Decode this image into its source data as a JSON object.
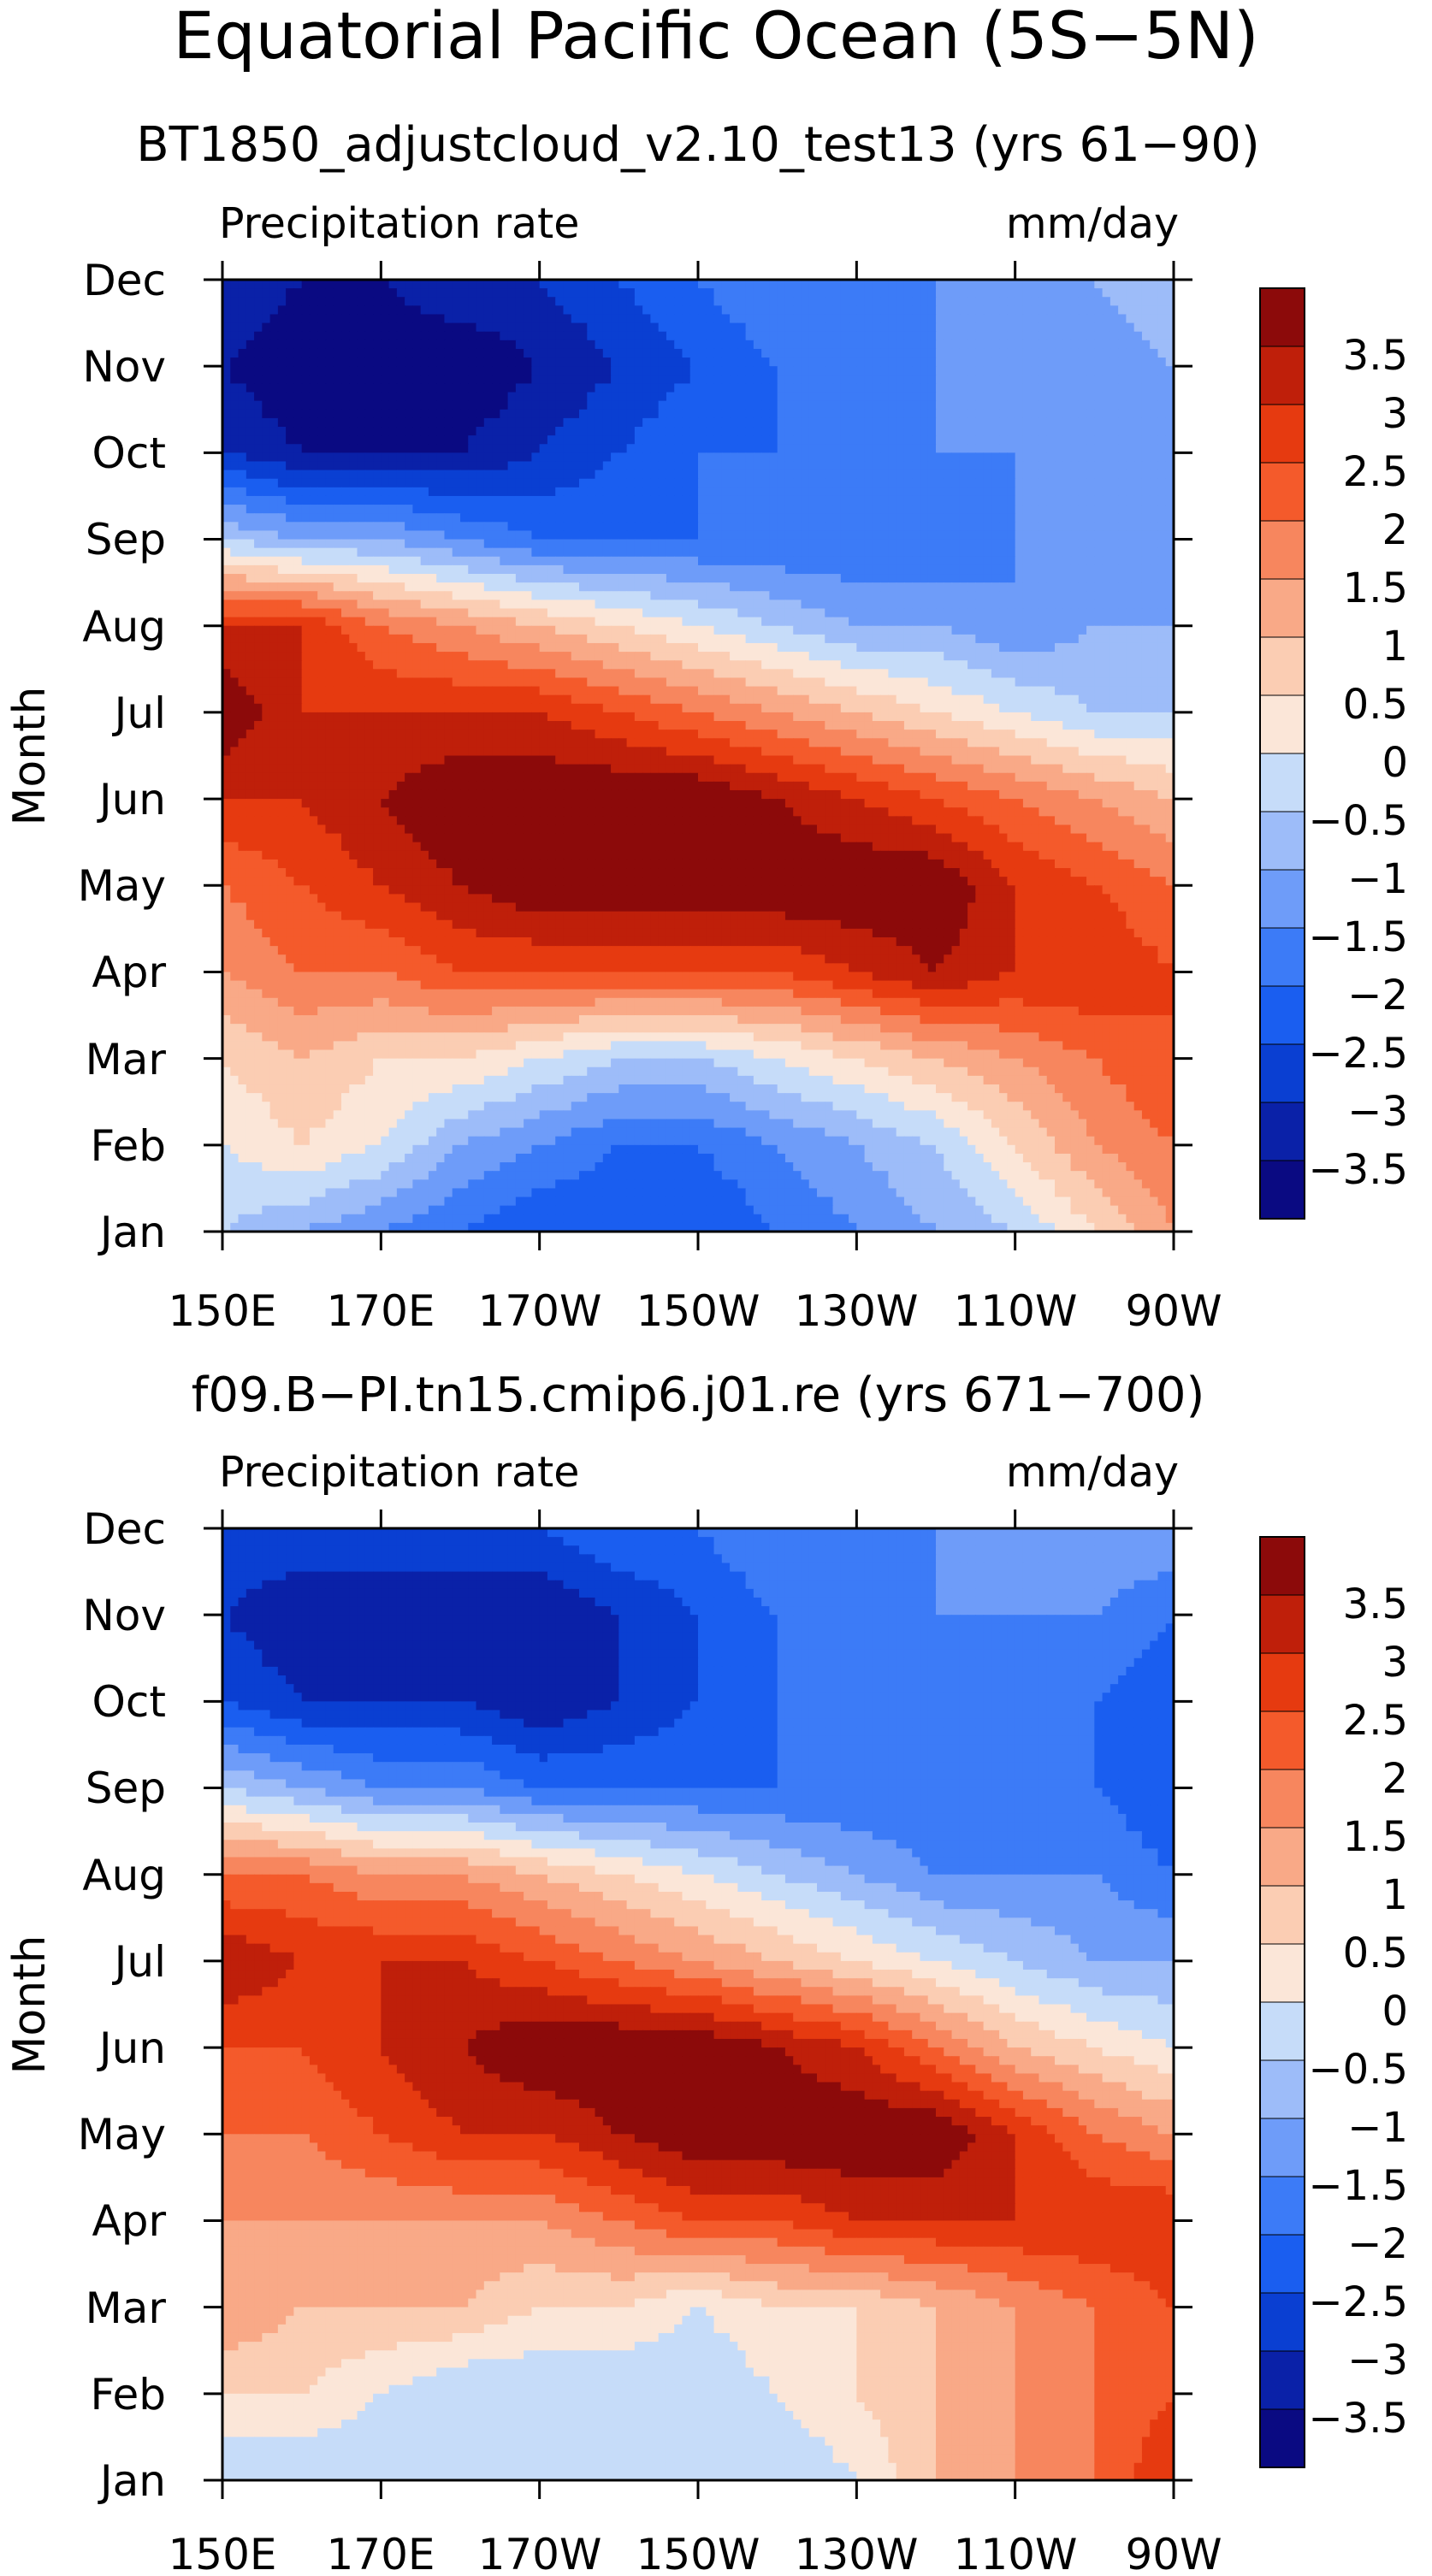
{
  "figure_title": "Equatorial Pacific Ocean (5S−5N)",
  "chart_data": [
    {
      "type": "heatmap",
      "title": "BT1850_adjustcloud_v2.10_test13 (yrs 61−90)",
      "variable_label": "Precipitation rate",
      "units_label": "mm/day",
      "ylabel": "Month",
      "x_ticks": [
        "150E",
        "170E",
        "170W",
        "150W",
        "130W",
        "110W",
        "90W"
      ],
      "x_tick_values": [
        150,
        170,
        190,
        210,
        230,
        250,
        270
      ],
      "xlim": [
        150,
        270
      ],
      "y_ticks": [
        "Jan",
        "Feb",
        "Mar",
        "Apr",
        "May",
        "Jun",
        "Jul",
        "Aug",
        "Sep",
        "Oct",
        "Nov",
        "Dec"
      ],
      "ylim": [
        1,
        12
      ],
      "colorbar": {
        "levels": [
          -3.5,
          -3,
          -2.5,
          -2,
          -1.5,
          -1,
          -0.5,
          0,
          0.5,
          1,
          1.5,
          2,
          2.5,
          3,
          3.5
        ],
        "labels": [
          "−3.5",
          "−3",
          "−2.5",
          "−2",
          "−1.5",
          "−1",
          "−0.5",
          "0",
          "0.5",
          "1",
          "1.5",
          "2",
          "2.5",
          "3",
          "3.5"
        ],
        "colors": [
          "#0a0a82",
          "#0a21a8",
          "#0a3fd2",
          "#1a5ef0",
          "#3c7bf7",
          "#6e9cf9",
          "#9dbcf9",
          "#c6dcf9",
          "#fbe6d8",
          "#fbcdb3",
          "#f9a987",
          "#f7865e",
          "#f45a2b",
          "#e63a10",
          "#bf1f0a",
          "#8c0a0a"
        ]
      },
      "grid_field_mm_per_day": [
        [
          -0.5,
          -1,
          -1.5,
          -2,
          -2.5,
          -2.5,
          -2.5,
          -2,
          -1.5,
          -1,
          -0.5,
          0.5,
          1.5
        ],
        [
          0,
          0.5,
          0,
          -1,
          -1.5,
          -2,
          -2,
          -1.5,
          -1,
          -0.5,
          0.5,
          1.5,
          2
        ],
        [
          0.5,
          1,
          0.5,
          0.5,
          0,
          -0.5,
          -0.5,
          0,
          0.5,
          1,
          1.5,
          2,
          2.5
        ],
        [
          1.5,
          2,
          2,
          2.5,
          2.5,
          2.5,
          2.5,
          2.5,
          3,
          3.5,
          3,
          3,
          2.5
        ],
        [
          2,
          2.5,
          3,
          3.5,
          4,
          4,
          4,
          4,
          4,
          4,
          3,
          2.5,
          2
        ],
        [
          3,
          3,
          3.5,
          4,
          4,
          4,
          4,
          3.5,
          3,
          2.5,
          2,
          1.5,
          1
        ],
        [
          4,
          3,
          3,
          3,
          3,
          2.5,
          2,
          1.5,
          1,
          0.5,
          0,
          -0.5,
          -0.5
        ],
        [
          3,
          3,
          2,
          1.5,
          1,
          0.5,
          0,
          -0.5,
          -1,
          -1,
          -1.5,
          -1,
          -1
        ],
        [
          -0.5,
          -1,
          -1,
          -1.5,
          -2,
          -2,
          -2,
          -2,
          -2,
          -2,
          -1.5,
          -1.5,
          -1.5
        ],
        [
          -3,
          -3.5,
          -3.5,
          -3.5,
          -3,
          -2.5,
          -2,
          -2,
          -1.5,
          -1.5,
          -1.5,
          -1.5,
          -1.5
        ],
        [
          -3.5,
          -4,
          -4,
          -4,
          -3.5,
          -3,
          -2.5,
          -2,
          -2,
          -1.5,
          -1.5,
          -1.5,
          -1
        ],
        [
          -3,
          -3.5,
          -3.5,
          -3,
          -3,
          -2.5,
          -2,
          -1.5,
          -1.5,
          -1.5,
          -1,
          -1,
          -0.5
        ]
      ]
    },
    {
      "type": "heatmap",
      "title": "f09.B−PI.tn15.cmip6.j01.re (yrs 671−700)",
      "variable_label": "Precipitation rate",
      "units_label": "mm/day",
      "ylabel": "Month",
      "x_ticks": [
        "150E",
        "170E",
        "170W",
        "150W",
        "130W",
        "110W",
        "90W"
      ],
      "x_tick_values": [
        150,
        170,
        190,
        210,
        230,
        250,
        270
      ],
      "xlim": [
        150,
        270
      ],
      "y_ticks": [
        "Jan",
        "Feb",
        "Mar",
        "Apr",
        "May",
        "Jun",
        "Jul",
        "Aug",
        "Sep",
        "Oct",
        "Nov",
        "Dec"
      ],
      "ylim": [
        1,
        12
      ],
      "colorbar": {
        "levels": [
          -3.5,
          -3,
          -2.5,
          -2,
          -1.5,
          -1,
          -0.5,
          0,
          0.5,
          1,
          1.5,
          2,
          2.5,
          3,
          3.5
        ],
        "labels": [
          "−3.5",
          "−3",
          "−2.5",
          "−2",
          "−1.5",
          "−1",
          "−0.5",
          "0",
          "0.5",
          "1",
          "1.5",
          "2",
          "2.5",
          "3",
          "3.5"
        ],
        "colors": [
          "#0a0a82",
          "#0a21a8",
          "#0a3fd2",
          "#1a5ef0",
          "#3c7bf7",
          "#6e9cf9",
          "#9dbcf9",
          "#c6dcf9",
          "#fbe6d8",
          "#fbcdb3",
          "#f9a987",
          "#f7865e",
          "#f45a2b",
          "#e63a10",
          "#bf1f0a",
          "#8c0a0a"
        ]
      },
      "grid_field_mm_per_day": [
        [
          -0.5,
          -0.5,
          -0.5,
          -0.5,
          -0.5,
          -0.5,
          -0.5,
          -0.5,
          0,
          1,
          1.5,
          2,
          3
        ],
        [
          0.5,
          0.5,
          0,
          -0.5,
          -0.5,
          -0.5,
          -0.5,
          0,
          0.5,
          1,
          1.5,
          2,
          2.5
        ],
        [
          1.5,
          1,
          1,
          1,
          0.5,
          0.5,
          0,
          0.5,
          0.5,
          1,
          1.5,
          2,
          2.5
        ],
        [
          1.5,
          1.5,
          1.5,
          1.5,
          1.5,
          2,
          2.5,
          2.5,
          3,
          3,
          3,
          3,
          3
        ],
        [
          2,
          2,
          2.5,
          3,
          3,
          3.5,
          4,
          4,
          4,
          4,
          3,
          2,
          1.5
        ],
        [
          2.5,
          2.5,
          3,
          3.5,
          4,
          4,
          4,
          3.5,
          3,
          2,
          1,
          0.5,
          0
        ],
        [
          3.5,
          3,
          3,
          3,
          2.5,
          2,
          1.5,
          1,
          0.5,
          0,
          -0.5,
          -1,
          -1
        ],
        [
          2,
          2,
          1.5,
          1.5,
          1,
          0.5,
          0,
          -0.5,
          -1,
          -1.5,
          -1.5,
          -1.5,
          -2
        ],
        [
          -0.5,
          -1,
          -1.5,
          -1.5,
          -2,
          -2,
          -2,
          -2,
          -2,
          -2,
          -2,
          -2,
          -2.5
        ],
        [
          -2.5,
          -3,
          -3,
          -3,
          -3.5,
          -3,
          -2.5,
          -2,
          -2,
          -2,
          -2,
          -2,
          -2.5
        ],
        [
          -3,
          -3.5,
          -3.5,
          -3.5,
          -3.5,
          -3,
          -2.5,
          -2,
          -2,
          -1.5,
          -1.5,
          -1.5,
          -2
        ],
        [
          -2.5,
          -2.5,
          -2.5,
          -2.5,
          -2.5,
          -2,
          -2,
          -1.5,
          -1.5,
          -1.5,
          -1,
          -1,
          -1
        ]
      ]
    }
  ]
}
